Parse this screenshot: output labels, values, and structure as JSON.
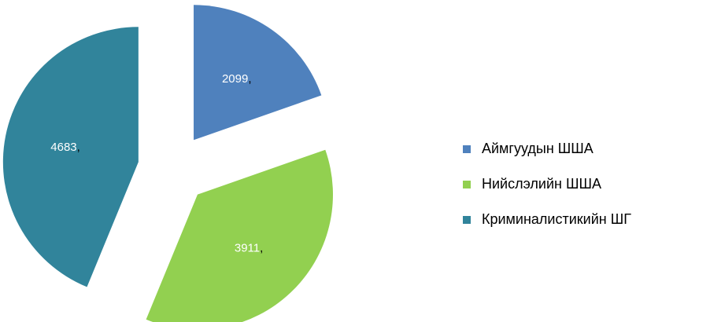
{
  "chart_data": {
    "type": "pie",
    "categories": [
      "Аймгуудын ШША",
      "Нийслэлийн ШША",
      "Криминалистикийн ШГ"
    ],
    "values": [
      2099,
      3911,
      4683
    ],
    "value_labels": [
      "2099,",
      "3911,",
      "4683,"
    ],
    "colors": [
      "#4f81bd",
      "#92d050",
      "#31849b"
    ],
    "exploded": true
  }
}
